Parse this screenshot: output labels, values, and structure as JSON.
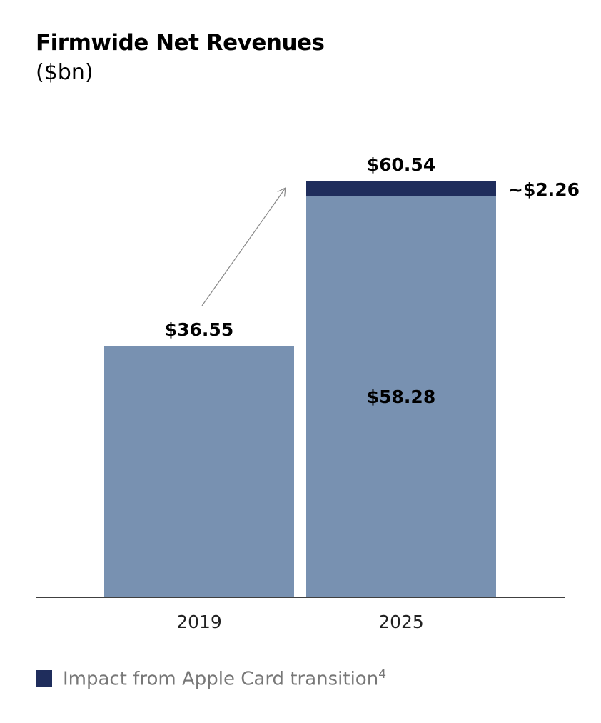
{
  "title": "Firmwide Net Revenues",
  "subtitle": "($bn)",
  "chart_data": {
    "type": "bar",
    "stacked": true,
    "categories": [
      "2019",
      "2025"
    ],
    "series": [
      {
        "values": [
          36.55,
          58.28
        ],
        "color": "#7891b1"
      },
      {
        "name": "Impact from Apple Card transition",
        "values": [
          0,
          2.26
        ],
        "color": "#1f2d5c"
      }
    ],
    "data_labels": {
      "total_2019": "$36.55",
      "total_2025": "$60.54",
      "base_2025": "$58.28",
      "impact_2025": "~$2.26"
    },
    "ylim": [
      0,
      60.54
    ],
    "grid": false,
    "annotation": "arrow from 2019 bar to 2025 bar",
    "legend": {
      "position": "bottom-left",
      "label": "Impact from Apple Card transition",
      "footnote": "4"
    }
  }
}
